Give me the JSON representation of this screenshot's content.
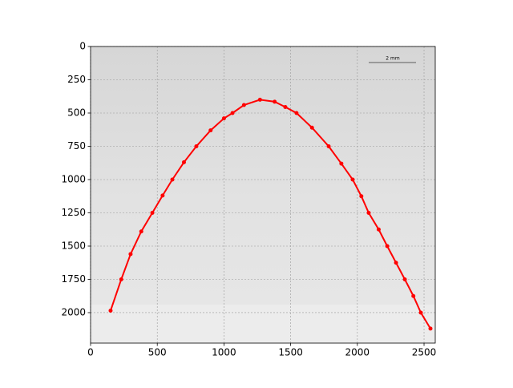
{
  "chart_data": {
    "type": "line",
    "annotation": "2 mm",
    "x": [
      150,
      230,
      300,
      380,
      463,
      540,
      613,
      700,
      793,
      900,
      1000,
      1064,
      1150,
      1270,
      1380,
      1460,
      1544,
      1660,
      1785,
      1880,
      1965,
      2030,
      2085,
      2160,
      2224,
      2290,
      2356,
      2420,
      2476,
      2548
    ],
    "values": [
      1985,
      1750,
      1560,
      1390,
      1250,
      1120,
      1000,
      870,
      750,
      630,
      540,
      500,
      440,
      400,
      415,
      455,
      500,
      610,
      750,
      880,
      1000,
      1125,
      1250,
      1375,
      1500,
      1625,
      1750,
      1875,
      2000,
      2120
    ],
    "color": "#ff0000",
    "xlim": [
      0,
      2584
    ],
    "ylim": [
      2229,
      0
    ],
    "xticks": [
      0,
      500,
      1000,
      1500,
      2000,
      2500
    ],
    "yticks": [
      0,
      250,
      500,
      750,
      1000,
      1250,
      1500,
      1750,
      2000
    ],
    "grid": true
  }
}
